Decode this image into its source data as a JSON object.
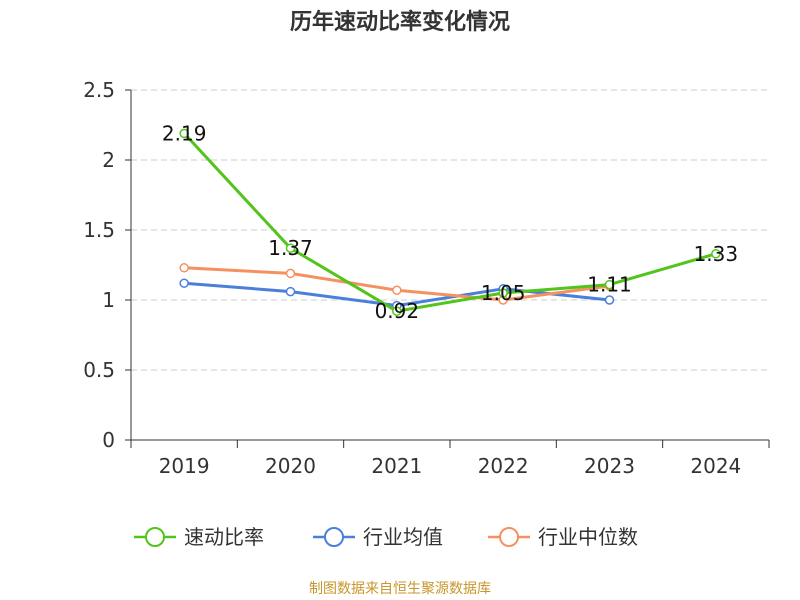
{
  "title": "历年速动比率变化情况",
  "source": "制图数据来自恒生聚源数据库",
  "chart_data": {
    "type": "line",
    "title": "历年速动比率变化情况",
    "xlabel": "",
    "ylabel": "",
    "categories": [
      "2019",
      "2020",
      "2021",
      "2022",
      "2023",
      "2024"
    ],
    "ylim": [
      0,
      2.5
    ],
    "yticks": [
      0,
      0.5,
      1,
      1.5,
      2,
      2.5
    ],
    "ytick_labels": [
      "0",
      "0.5",
      "1",
      "1.5",
      "2",
      "2.5"
    ],
    "grid": "horizontal dashed",
    "legend_position": "bottom",
    "series": [
      {
        "name": "速动比率",
        "color": "#52c41a",
        "values": [
          2.19,
          1.37,
          0.92,
          1.05,
          1.11,
          1.33
        ],
        "labels": [
          "2.19",
          "1.37",
          "0.92",
          "1.05",
          "1.11",
          "1.33"
        ]
      },
      {
        "name": "行业均值",
        "color": "#4a7fdb",
        "values": [
          1.12,
          1.06,
          0.96,
          1.08,
          1.0,
          null
        ]
      },
      {
        "name": "行业中位数",
        "color": "#f59161",
        "values": [
          1.23,
          1.19,
          1.07,
          1.0,
          1.1,
          null
        ]
      }
    ]
  }
}
